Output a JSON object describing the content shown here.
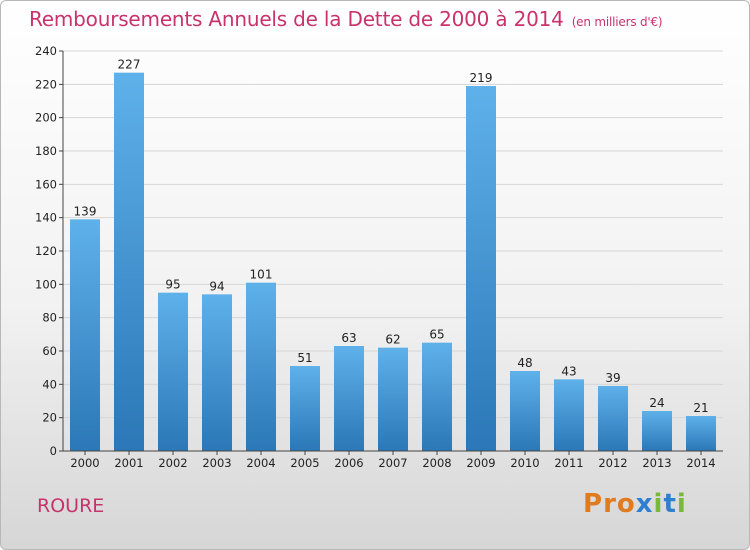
{
  "header": {
    "title": "Remboursements Annuels de la Dette de 2000 à 2014",
    "unit": "(en milliers d'€)"
  },
  "footer": {
    "commune": "ROURE",
    "brand": [
      "P",
      "r",
      "o",
      "x",
      "i",
      "t",
      "i"
    ]
  },
  "colors": {
    "title": "#c8336b",
    "bar_top": "#5fb1ea",
    "bar_bottom": "#2b77b7",
    "logo": [
      "#e07b1f",
      "#e07b1f",
      "#e07b1f",
      "#2f7fd0",
      "#7ab83a",
      "#2f7fd0",
      "#7ab83a"
    ]
  },
  "chart_data": {
    "type": "bar",
    "title": "Remboursements Annuels de la Dette de 2000 à 2014",
    "categories": [
      "2000",
      "2001",
      "2002",
      "2003",
      "2004",
      "2005",
      "2006",
      "2007",
      "2008",
      "2009",
      "2010",
      "2011",
      "2012",
      "2013",
      "2014"
    ],
    "values": [
      139,
      227,
      95,
      94,
      101,
      51,
      63,
      62,
      65,
      219,
      48,
      43,
      39,
      24,
      21
    ],
    "ylim": [
      0,
      240
    ],
    "yticks": [
      0,
      20,
      40,
      60,
      80,
      100,
      120,
      140,
      160,
      180,
      200,
      220,
      240
    ],
    "grid": true
  }
}
